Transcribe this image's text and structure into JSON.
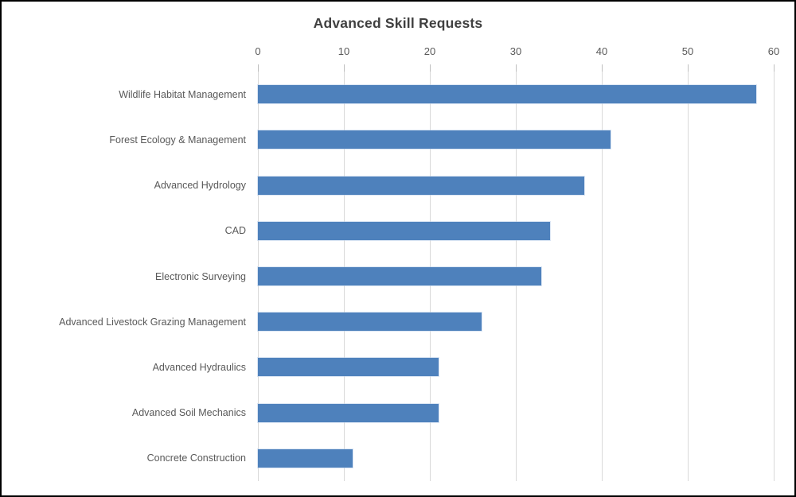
{
  "chart_data": {
    "type": "bar",
    "orientation": "horizontal",
    "title": "Advanced Skill Requests",
    "categories": [
      "Wildlife Habitat Management",
      "Forest Ecology & Management",
      "Advanced Hydrology",
      "CAD",
      "Electronic Surveying",
      "Advanced Livestock Grazing Management",
      "Advanced Hydraulics",
      "Advanced Soil Mechanics",
      "Concrete Construction"
    ],
    "values": [
      58,
      41,
      38,
      34,
      33,
      26,
      21,
      21,
      11
    ],
    "xlabel": "",
    "ylabel": "",
    "xlim": [
      0,
      60
    ],
    "x_ticks": [
      0,
      10,
      20,
      30,
      40,
      50,
      60
    ],
    "x_axis_position": "top",
    "grid": "vertical",
    "legend": "none",
    "colors": {
      "bar": "#4e81bc",
      "gridline": "#d9d9d9",
      "tick_text": "#595959",
      "category_text": "#595959",
      "title_text": "#404040",
      "frame_border": "#000000",
      "background": "#ffffff"
    }
  }
}
